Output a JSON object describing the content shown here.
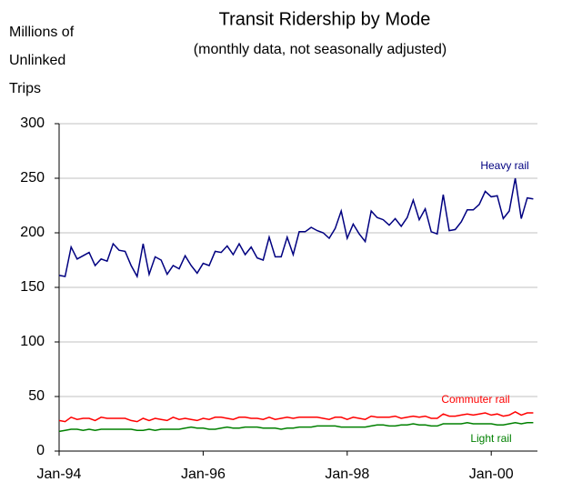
{
  "chart_data": {
    "type": "line",
    "title": "Transit Ridership by Mode",
    "subtitle": "(monthly data, not seasonally adjusted)",
    "y_label": [
      "Millions of",
      "Unlinked",
      "Trips"
    ],
    "categories": [
      "Jan-94",
      null,
      null,
      null,
      null,
      null,
      null,
      null,
      null,
      null,
      null,
      null,
      null,
      null,
      null,
      null,
      null,
      null,
      null,
      null,
      null,
      null,
      null,
      null,
      "Jan-96",
      null,
      null,
      null,
      null,
      null,
      null,
      null,
      null,
      null,
      null,
      null,
      null,
      null,
      null,
      null,
      null,
      null,
      null,
      null,
      null,
      null,
      null,
      null,
      "Jan-98",
      null,
      null,
      null,
      null,
      null,
      null,
      null,
      null,
      null,
      null,
      null,
      null,
      null,
      null,
      null,
      null,
      null,
      null,
      null,
      null,
      null,
      null,
      null,
      "Jan-00",
      null,
      null,
      null,
      null,
      null,
      null,
      null
    ],
    "series": [
      {
        "name": "Heavy rail",
        "color": "#000080",
        "values": [
          161,
          160,
          187,
          176,
          179,
          182,
          170,
          176,
          174,
          190,
          184,
          183,
          170,
          160,
          190,
          162,
          178,
          175,
          162,
          170,
          167,
          179,
          170,
          163,
          172,
          170,
          183,
          182,
          188,
          180,
          190,
          180,
          187,
          177,
          175,
          196,
          178,
          178,
          196,
          180,
          201,
          201,
          205,
          202,
          200,
          195,
          204,
          220,
          195,
          208,
          199,
          192,
          220,
          214,
          212,
          207,
          213,
          206,
          214,
          230,
          212,
          222,
          201,
          199,
          235,
          202,
          203,
          210,
          221,
          221,
          226,
          238,
          233,
          234,
          213,
          220,
          250,
          213,
          232,
          231
        ]
      },
      {
        "name": "Commuter rail",
        "color": "#ff0000",
        "values": [
          28,
          27,
          31,
          29,
          30,
          30,
          28,
          31,
          30,
          30,
          30,
          30,
          28,
          27,
          30,
          28,
          30,
          29,
          28,
          31,
          29,
          30,
          29,
          28,
          30,
          29,
          31,
          31,
          30,
          29,
          31,
          31,
          30,
          30,
          29,
          31,
          29,
          30,
          31,
          30,
          31,
          31,
          31,
          31,
          30,
          29,
          31,
          31,
          29,
          31,
          30,
          29,
          32,
          31,
          31,
          31,
          32,
          30,
          31,
          32,
          31,
          32,
          30,
          30,
          34,
          32,
          32,
          33,
          34,
          33,
          34,
          35,
          33,
          34,
          32,
          33,
          36,
          33,
          35,
          35
        ]
      },
      {
        "name": "Light rail",
        "color": "#008000",
        "values": [
          18,
          19,
          20,
          20,
          19,
          20,
          19,
          20,
          20,
          20,
          20,
          20,
          20,
          19,
          19,
          20,
          19,
          20,
          20,
          20,
          20,
          21,
          22,
          21,
          21,
          20,
          20,
          21,
          22,
          21,
          21,
          22,
          22,
          22,
          21,
          21,
          21,
          20,
          21,
          21,
          22,
          22,
          22,
          23,
          23,
          23,
          23,
          22,
          22,
          22,
          22,
          22,
          23,
          24,
          24,
          23,
          23,
          24,
          24,
          25,
          24,
          24,
          23,
          23,
          25,
          25,
          25,
          25,
          26,
          25,
          25,
          25,
          25,
          24,
          24,
          25,
          26,
          25,
          26,
          26
        ]
      }
    ],
    "ylim": [
      0,
      300
    ],
    "yticks": [
      0,
      50,
      100,
      150,
      200,
      250,
      300
    ],
    "grid": true
  }
}
